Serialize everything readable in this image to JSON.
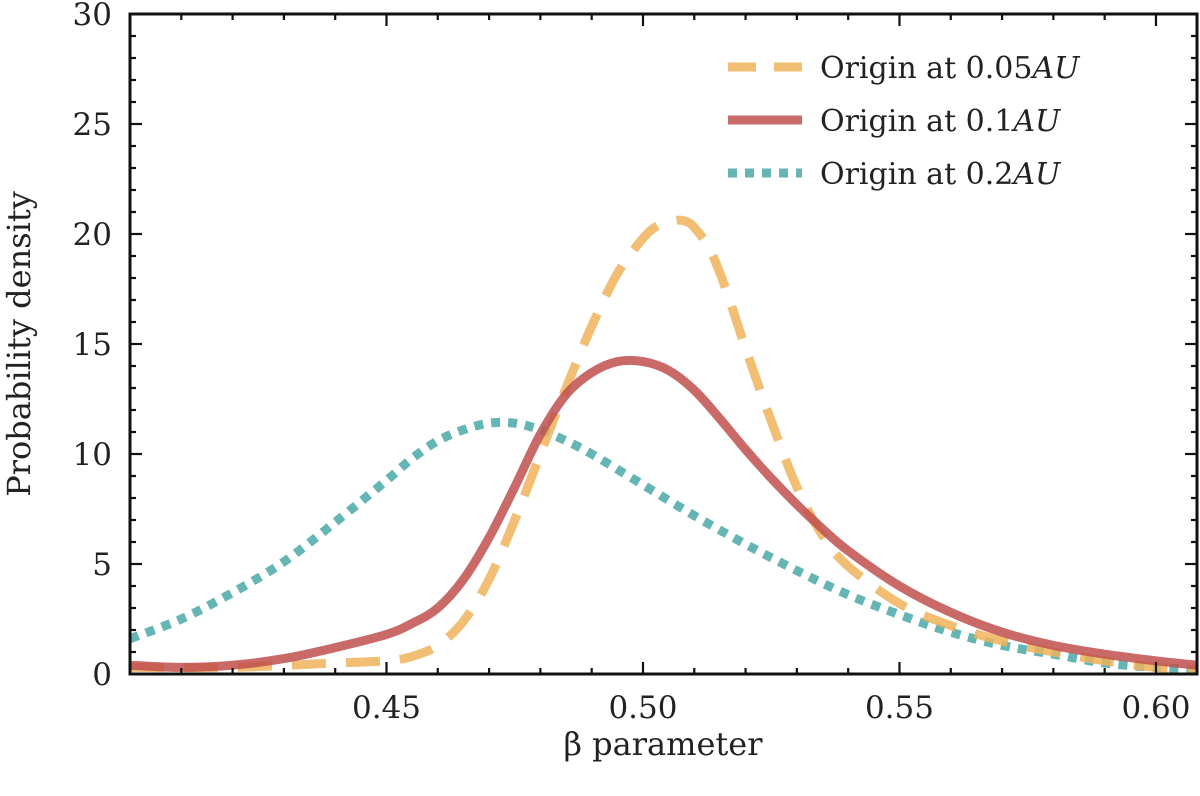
{
  "chart_data": {
    "type": "line",
    "xlabel": "β parameter",
    "ylabel": "Probability density",
    "xlim": [
      0.4,
      0.608
    ],
    "ylim": [
      0,
      30
    ],
    "xticks": [
      0.45,
      0.5,
      0.55,
      0.6
    ],
    "xtick_labels": [
      "0.45",
      "0.50",
      "0.55",
      "0.60"
    ],
    "yticks": [
      0,
      5,
      10,
      15,
      20,
      25,
      30
    ],
    "ytick_labels": [
      "0",
      "5",
      "10",
      "15",
      "20",
      "25",
      "30"
    ],
    "legend_position": "top-right",
    "series": [
      {
        "name": "Origin at 0.05AU",
        "label_prefix": "Origin at 0.05",
        "label_unit": "AU",
        "color": "#eeb35c",
        "style": "dashed",
        "x": [
          0.4,
          0.42,
          0.44,
          0.45,
          0.455,
          0.46,
          0.465,
          0.47,
          0.475,
          0.48,
          0.485,
          0.49,
          0.495,
          0.5,
          0.503,
          0.506,
          0.508,
          0.51,
          0.513,
          0.516,
          0.52,
          0.525,
          0.53,
          0.535,
          0.54,
          0.55,
          0.56,
          0.57,
          0.58,
          0.59,
          0.6,
          0.608
        ],
        "y": [
          0.3,
          0.3,
          0.5,
          0.6,
          0.8,
          1.3,
          2.4,
          4.3,
          7.0,
          10.0,
          13.0,
          15.8,
          18.2,
          19.8,
          20.4,
          20.6,
          20.6,
          20.3,
          19.3,
          17.6,
          14.8,
          11.5,
          8.5,
          6.3,
          4.9,
          3.2,
          2.2,
          1.5,
          1.0,
          0.6,
          0.3,
          0.2
        ]
      },
      {
        "name": "Origin at 0.1AU",
        "label_prefix": "Origin at 0.1",
        "label_unit": "AU",
        "color": "#c0504d",
        "style": "solid",
        "x": [
          0.4,
          0.41,
          0.42,
          0.43,
          0.44,
          0.45,
          0.455,
          0.46,
          0.465,
          0.47,
          0.475,
          0.48,
          0.485,
          0.49,
          0.495,
          0.5,
          0.505,
          0.51,
          0.515,
          0.52,
          0.525,
          0.53,
          0.535,
          0.54,
          0.55,
          0.56,
          0.57,
          0.58,
          0.59,
          0.6,
          0.608
        ],
        "y": [
          0.4,
          0.3,
          0.4,
          0.7,
          1.2,
          1.8,
          2.3,
          3.0,
          4.3,
          6.2,
          8.5,
          10.9,
          12.7,
          13.7,
          14.2,
          14.2,
          13.8,
          12.9,
          11.6,
          10.2,
          8.9,
          7.7,
          6.6,
          5.6,
          4.0,
          2.8,
          1.9,
          1.3,
          0.9,
          0.6,
          0.4
        ]
      },
      {
        "name": "Origin at 0.2AU",
        "label_prefix": "Origin at 0.2",
        "label_unit": "AU",
        "color": "#4aa8a8",
        "style": "dotted",
        "x": [
          0.4,
          0.41,
          0.42,
          0.43,
          0.44,
          0.45,
          0.455,
          0.46,
          0.465,
          0.47,
          0.475,
          0.48,
          0.485,
          0.49,
          0.5,
          0.51,
          0.52,
          0.53,
          0.54,
          0.55,
          0.56,
          0.57,
          0.58,
          0.59,
          0.6,
          0.608
        ],
        "y": [
          1.6,
          2.5,
          3.7,
          5.1,
          6.9,
          8.8,
          9.8,
          10.6,
          11.1,
          11.4,
          11.4,
          11.1,
          10.6,
          10.0,
          8.6,
          7.2,
          5.9,
          4.7,
          3.6,
          2.7,
          1.9,
          1.3,
          0.9,
          0.5,
          0.3,
          0.2
        ]
      }
    ]
  }
}
